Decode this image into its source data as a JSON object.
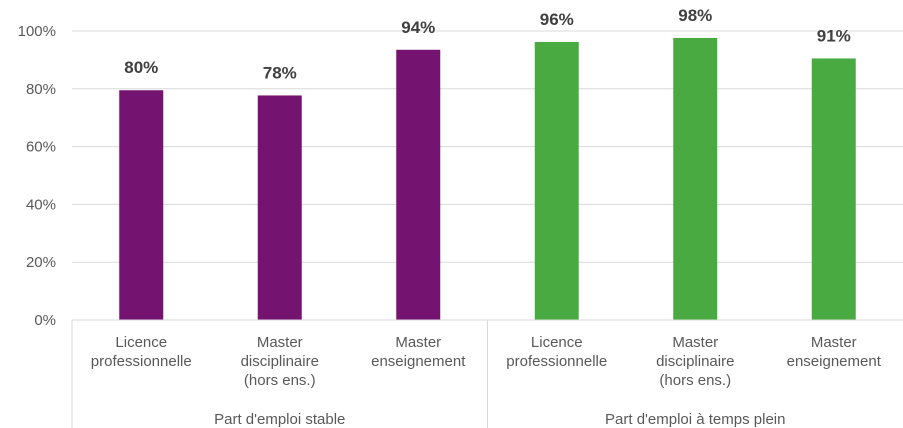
{
  "chart_data": {
    "type": "bar",
    "y_ticks": [
      "0%",
      "20%",
      "40%",
      "60%",
      "80%",
      "100%"
    ],
    "ylim": [
      0,
      100
    ],
    "grid": true,
    "groups": [
      {
        "label": "Part d'emploi stable",
        "color": "#751370",
        "bars": [
          {
            "category": [
              "Licence",
              "professionnelle"
            ],
            "value": 80,
            "label": "80%",
            "bar_value": 79.5
          },
          {
            "category": [
              "Master",
              "disciplinaire",
              "(hors ens.)"
            ],
            "value": 78,
            "label": "78%",
            "bar_value": 77.7
          },
          {
            "category": [
              "Master",
              "enseignement"
            ],
            "value": 94,
            "label": "94%",
            "bar_value": 93.5
          }
        ]
      },
      {
        "label": "Part d'emploi à temps plein",
        "color": "#4aaa42",
        "bars": [
          {
            "category": [
              "Licence",
              "professionnelle"
            ],
            "value": 96,
            "label": "96%",
            "bar_value": 96.2
          },
          {
            "category": [
              "Master",
              "disciplinaire",
              "(hors ens.)"
            ],
            "value": 98,
            "label": "98%",
            "bar_value": 97.6
          },
          {
            "category": [
              "Master",
              "enseignement"
            ],
            "value": 91,
            "label": "91%",
            "bar_value": 90.5
          }
        ]
      }
    ]
  }
}
